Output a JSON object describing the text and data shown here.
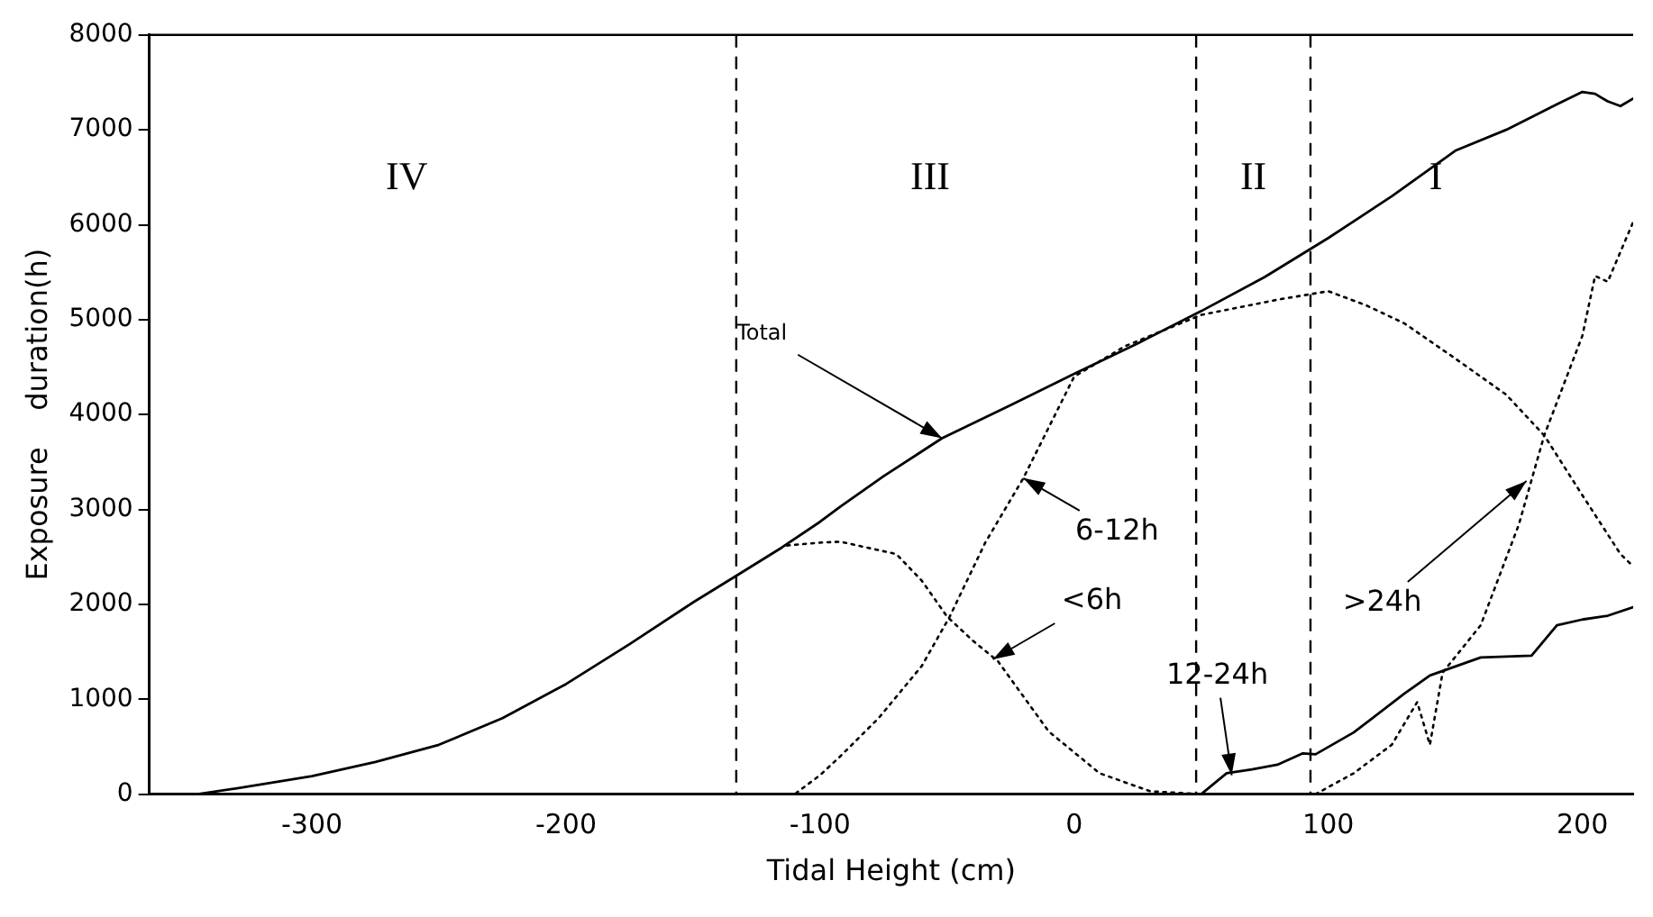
{
  "chart_data": {
    "type": "line",
    "xlabel": "Tidal Height (cm)",
    "ylabel": "Exposure    duration(h)",
    "xlim": [
      -364,
      220
    ],
    "xticks": [
      -300,
      -200,
      -100,
      0,
      100,
      200
    ],
    "ylim": [
      0,
      8000
    ],
    "yticks": [
      0,
      1000,
      2000,
      3000,
      4000,
      5000,
      6000,
      7000,
      8000
    ],
    "grid": false,
    "legend": false,
    "marker": "none",
    "series": [
      {
        "color": "#000000",
        "line_style": "solid",
        "x": [
          -345,
          -330,
          -300,
          -275,
          -250,
          -225,
          -200,
          -175,
          -150,
          -133,
          -115,
          -100,
          -92,
          -75,
          -52,
          -25,
          0,
          25,
          50,
          75,
          100,
          125,
          150,
          170,
          190,
          200,
          205,
          210,
          215,
          220
        ],
        "values": [
          0,
          60,
          190,
          340,
          520,
          800,
          1160,
          1580,
          2020,
          2300,
          2600,
          2870,
          3030,
          3350,
          3750,
          4100,
          4430,
          4750,
          5090,
          5450,
          5860,
          6300,
          6780,
          7000,
          7270,
          7400,
          7380,
          7300,
          7250,
          7330
        ]
      },
      {
        "color": "#000000",
        "line_style": "dotted",
        "x": [
          -135,
          -120,
          -110,
          -100,
          -92,
          -77,
          -60,
          -49,
          -35,
          -20,
          0,
          20,
          50,
          80,
          100,
          115,
          130,
          150,
          170,
          185,
          200,
          215,
          220
        ],
        "values": [
          0,
          0,
          0,
          200,
          400,
          800,
          1350,
          1870,
          2650,
          3330,
          4400,
          4720,
          5050,
          5210,
          5300,
          5150,
          4960,
          4590,
          4210,
          3780,
          3150,
          2530,
          2400
        ]
      },
      {
        "color": "#000000",
        "line_style": "dotted",
        "x": [
          -113,
          -100,
          -92,
          -70,
          -60,
          -50,
          -40,
          -30,
          -10,
          10,
          30,
          50
        ],
        "values": [
          2620,
          2650,
          2660,
          2530,
          2250,
          1870,
          1620,
          1400,
          660,
          220,
          30,
          0
        ]
      },
      {
        "color": "#000000",
        "line_style": "solid",
        "x": [
          50,
          60,
          70,
          80,
          90,
          95,
          110,
          130,
          140,
          160,
          180,
          190,
          200,
          210,
          220
        ],
        "values": [
          0,
          220,
          260,
          310,
          430,
          420,
          650,
          1060,
          1250,
          1440,
          1460,
          1780,
          1840,
          1880,
          1970
        ]
      },
      {
        "color": "#000000",
        "line_style": "dotted",
        "x": [
          95,
          110,
          125,
          135,
          140,
          145,
          160,
          175,
          185,
          200,
          205,
          210,
          220
        ],
        "values": [
          0,
          220,
          520,
          970,
          520,
          1280,
          1780,
          2840,
          3780,
          4830,
          5460,
          5400,
          6030
        ]
      }
    ],
    "ref_lines": [
      {
        "axis": "x",
        "value": -133,
        "line_style": "dashed"
      },
      {
        "axis": "x",
        "value": 48,
        "line_style": "dashed"
      },
      {
        "axis": "x",
        "value": 93,
        "line_style": "dashed"
      }
    ],
    "annotations": [
      "IV",
      "III",
      "II",
      "I",
      {
        "text": "Total",
        "x": -52,
        "y": 3750
      },
      {
        "text": "6-12h",
        "x": -20,
        "y": 3330
      },
      {
        "text": "<6h",
        "x": -32,
        "y": 1420
      },
      {
        "text": ">24h",
        "x": 178,
        "y": 3300
      },
      {
        "text": "12-24h",
        "x": 62,
        "y": 200
      }
    ]
  }
}
